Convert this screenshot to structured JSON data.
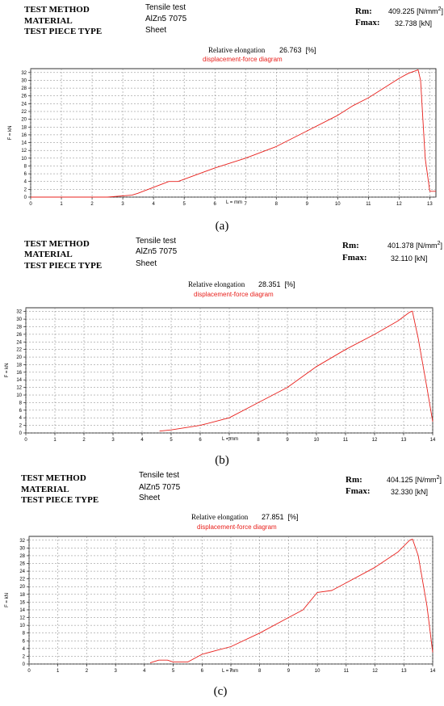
{
  "panels": [
    {
      "caption": "(a)",
      "test_method_label": "TEST METHOD",
      "test_method": "Tensile test",
      "material_label": "MATERIAL",
      "material": "AlZn5 7075",
      "piece_label": "TEST PIECE TYPE",
      "piece": "Sheet",
      "rm_label": "Rm:",
      "rm_value": "409.225",
      "rm_unit": "[N/mm",
      "rm_sup": "2",
      "rm_close": "]",
      "fmax_label": "Fmax:",
      "fmax_value": "32.738",
      "fmax_unit": "[kN]",
      "elong_label": "Relative elongation",
      "elong_value": "26.763",
      "elong_unit": "[%]",
      "diagram_title": "displacement-force diagram"
    },
    {
      "caption": "(b)",
      "test_method_label": "TEST METHOD",
      "test_method": "Tensile test",
      "material_label": "MATERIAL",
      "material": "AlZn5 7075",
      "piece_label": "TEST PIECE TYPE",
      "piece": "Sheet",
      "rm_label": "Rm:",
      "rm_value": "401.378",
      "rm_unit": "[N/mm",
      "rm_sup": "2",
      "rm_close": "]",
      "fmax_label": "Fmax:",
      "fmax_value": "32.110",
      "fmax_unit": "[kN]",
      "elong_label": "Relative elongation",
      "elong_value": "28.351",
      "elong_unit": "[%]",
      "diagram_title": "displacement-force diagram"
    },
    {
      "caption": "(c)",
      "test_method_label": "TEST METHOD",
      "test_method": "Tensile test",
      "material_label": "MATERIAL",
      "material": "AlZn5 7075",
      "piece_label": "TEST PIECE TYPE",
      "piece": "Sheet",
      "rm_label": "Rm:",
      "rm_value": "404.125",
      "rm_unit": "[N/mm",
      "rm_sup": "2",
      "rm_close": "]",
      "fmax_label": "Fmax:",
      "fmax_value": "32.330",
      "fmax_unit": "[kN]",
      "elong_label": "Relative elongation",
      "elong_value": "27.851",
      "elong_unit": "[%]",
      "diagram_title": "displacement-force diagram"
    }
  ],
  "chart_data": [
    {
      "type": "line",
      "title": "displacement-force diagram",
      "xlabel": "L = mm",
      "ylabel": "F = kN",
      "xlim": [
        0,
        13.2
      ],
      "ylim": [
        0,
        33
      ],
      "xticks": [
        0,
        1,
        2,
        3,
        4,
        5,
        6,
        7,
        8,
        9,
        10,
        11,
        12,
        13
      ],
      "yticks": [
        0,
        2,
        4,
        6,
        8,
        10,
        12,
        14,
        16,
        18,
        20,
        22,
        24,
        26,
        28,
        30,
        32
      ],
      "grid": true,
      "color": "#e8201c",
      "series": [
        {
          "x": [
            0,
            2.5,
            3.3,
            3.5,
            4.5,
            4.8,
            6,
            7,
            8,
            9,
            10,
            10.5,
            11,
            11.5,
            12,
            12.3,
            12.55,
            12.62,
            12.7,
            12.85,
            13,
            13.2
          ],
          "y": [
            0,
            0,
            0.5,
            1,
            4,
            4,
            7.5,
            10,
            13,
            17,
            21,
            23.5,
            25.5,
            28,
            30.5,
            31.8,
            32.5,
            32.7,
            30,
            10,
            1.5,
            1.5
          ]
        }
      ]
    },
    {
      "type": "line",
      "title": "displacement-force diagram",
      "xlabel": "L = mm",
      "ylabel": "F = kN",
      "xlim": [
        0,
        14
      ],
      "ylim": [
        0,
        33
      ],
      "xticks": [
        0,
        1,
        2,
        3,
        4,
        5,
        6,
        7,
        8,
        9,
        10,
        11,
        12,
        13,
        14
      ],
      "yticks": [
        0,
        2,
        4,
        6,
        8,
        10,
        12,
        14,
        16,
        18,
        20,
        22,
        24,
        26,
        28,
        30,
        32
      ],
      "grid": true,
      "color": "#e8201c",
      "series": [
        {
          "x": [
            4.6,
            5,
            6,
            6.5,
            7,
            8,
            9,
            10,
            11,
            12,
            12.8,
            13.2,
            13.3,
            13.5,
            13.8,
            14
          ],
          "y": [
            0.5,
            0.8,
            2,
            3,
            4,
            8,
            12,
            17.5,
            22,
            26,
            29.5,
            31.8,
            32.1,
            25,
            12,
            3
          ]
        }
      ]
    },
    {
      "type": "line",
      "title": "displacement-force diagram",
      "xlabel": "L = mm",
      "ylabel": "F = kN",
      "xlim": [
        0,
        14
      ],
      "ylim": [
        0,
        33
      ],
      "xticks": [
        0,
        1,
        2,
        3,
        4,
        5,
        6,
        7,
        8,
        9,
        10,
        11,
        12,
        13,
        14
      ],
      "yticks": [
        0,
        2,
        4,
        6,
        8,
        10,
        12,
        14,
        16,
        18,
        20,
        22,
        24,
        26,
        28,
        30,
        32
      ],
      "grid": true,
      "color": "#e8201c",
      "series": [
        {
          "x": [
            4.2,
            4.5,
            4.8,
            5,
            5.5,
            6,
            6.5,
            7,
            8,
            9,
            9.5,
            10,
            10.5,
            11,
            12,
            12.8,
            13.2,
            13.3,
            13.5,
            13.8,
            14
          ],
          "y": [
            0.3,
            1,
            1,
            0.5,
            0.5,
            2.5,
            3.5,
            4.5,
            8,
            12,
            14,
            18.5,
            19,
            21,
            25,
            29,
            32,
            32.3,
            28,
            15,
            3
          ]
        }
      ]
    }
  ]
}
